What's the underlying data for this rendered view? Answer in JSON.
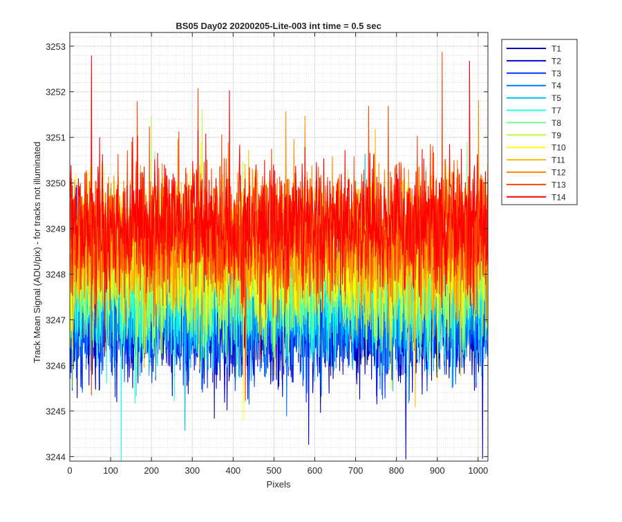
{
  "chart_data": {
    "type": "line",
    "title": "BS05 Day02 20200205-Lite-003 int time = 0.5 sec",
    "xlabel": "Pixels",
    "ylabel": "Track Mean Signal (ADU/pix) - for tracks not illuminated",
    "xlim": [
      0,
      1024
    ],
    "ylim": [
      3243.9,
      3253.3
    ],
    "xticks": [
      0,
      100,
      200,
      300,
      400,
      500,
      600,
      700,
      800,
      900,
      1000
    ],
    "yticks": [
      3244,
      3245,
      3246,
      3247,
      3248,
      3249,
      3250,
      3251,
      3252,
      3253
    ],
    "grid": true,
    "minor_grid": true,
    "legend_position": "outside-top-right",
    "x": "pixel index 1..1024",
    "series": [
      {
        "name": "T1",
        "color": "#0000B3",
        "mean": 3246.9,
        "std": 0.62,
        "noise_seed": 11
      },
      {
        "name": "T2",
        "color": "#0000DD",
        "mean": 3247.0,
        "std": 0.62,
        "noise_seed": 23
      },
      {
        "name": "T3",
        "color": "#0033FF",
        "mean": 3247.1,
        "std": 0.62,
        "noise_seed": 37
      },
      {
        "name": "T4",
        "color": "#0077FF",
        "mean": 3247.25,
        "std": 0.65,
        "noise_seed": 41
      },
      {
        "name": "T5",
        "color": "#00BBFF",
        "mean": 3247.45,
        "std": 0.68,
        "noise_seed": 53
      },
      {
        "name": "T7",
        "color": "#22FFDD",
        "mean": 3247.7,
        "std": 0.7,
        "noise_seed": 67
      },
      {
        "name": "T8",
        "color": "#77FF88",
        "mean": 3247.9,
        "std": 0.72,
        "noise_seed": 71
      },
      {
        "name": "T9",
        "color": "#BBFF44",
        "mean": 3248.15,
        "std": 0.72,
        "noise_seed": 83
      },
      {
        "name": "T10",
        "color": "#FFFF00",
        "mean": 3248.4,
        "std": 0.72,
        "noise_seed": 97
      },
      {
        "name": "T11",
        "color": "#FFBB00",
        "mean": 3248.6,
        "std": 0.72,
        "noise_seed": 101
      },
      {
        "name": "T12",
        "color": "#FF8800",
        "mean": 3248.8,
        "std": 0.72,
        "noise_seed": 113
      },
      {
        "name": "T13",
        "color": "#FF4400",
        "mean": 3248.95,
        "std": 0.72,
        "noise_seed": 127
      },
      {
        "name": "T14",
        "color": "#FF0000",
        "mean": 3249.1,
        "std": 0.72,
        "noise_seed": 139
      }
    ]
  }
}
